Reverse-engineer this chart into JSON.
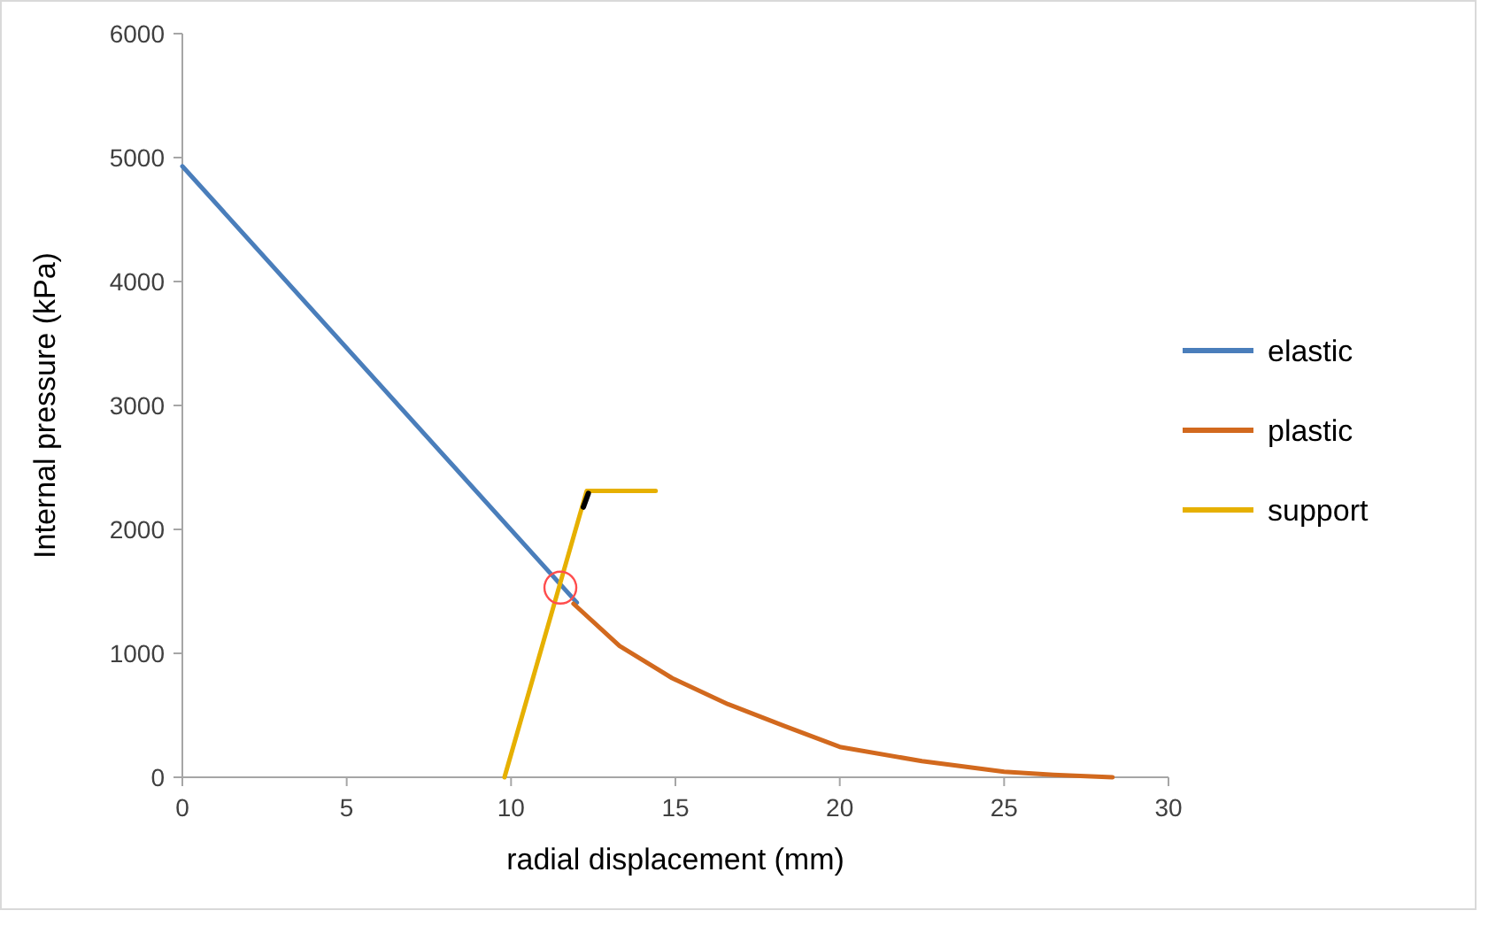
{
  "chart_data": {
    "type": "line",
    "xlabel": "radial displacement (mm)",
    "ylabel": "Internal pressure (kPa)",
    "xlim": [
      0,
      30
    ],
    "xticks": [
      0,
      5,
      10,
      15,
      20,
      25,
      30
    ],
    "ylim": [
      0,
      6000
    ],
    "yticks": [
      0,
      1000,
      2000,
      3000,
      4000,
      5000,
      6000
    ],
    "grid": false,
    "legend": "right",
    "marker": "none",
    "line_style": "solid",
    "series": [
      {
        "name": "elastic",
        "color": "#4a7ebb",
        "x": [
          0,
          12.0
        ],
        "values": [
          4930,
          1410
        ]
      },
      {
        "name": "plastic",
        "color": "#d2691e",
        "x": [
          11.9,
          13.3,
          14.9,
          16.6,
          18.3,
          20.0,
          22.5,
          25.0,
          26.5,
          28.3
        ],
        "values": [
          1400,
          1060,
          800,
          590,
          415,
          245,
          130,
          45,
          20,
          0
        ]
      },
      {
        "name": "support",
        "color": "#e6b000",
        "x": [
          9.8,
          12.3,
          14.4
        ],
        "values": [
          0,
          2310,
          2310
        ]
      },
      {
        "color": "#000000",
        "x": [
          12.2,
          12.35
        ],
        "values": [
          2180,
          2290
        ]
      }
    ]
  }
}
